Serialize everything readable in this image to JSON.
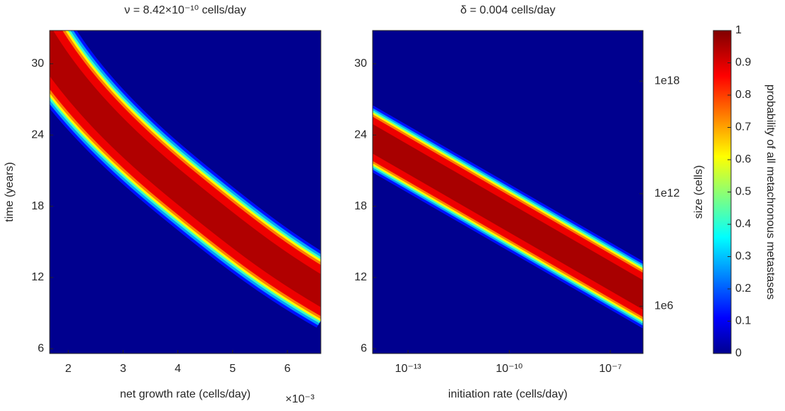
{
  "chart_data": [
    {
      "type": "heatmap",
      "title": "ν = 8.42×10⁻¹⁰ cells/day",
      "xlabel": "net growth rate (cells/day)",
      "x_multiplier": "×10⁻³",
      "ylabel": "time (years)",
      "xlim": [
        1.66,
        6.61
      ],
      "xticks": [
        2,
        3,
        4,
        5,
        6
      ],
      "ylim": [
        5.6,
        32.8
      ],
      "yticks": [
        6,
        12,
        18,
        24,
        30
      ]
    },
    {
      "type": "heatmap",
      "title": "δ = 0.004 cells/day",
      "xlabel": "initiation rate (cells/day)",
      "xlog": true,
      "xlim": [
        8.9e-15,
        9.3e-07
      ],
      "xticks": [
        {
          "value": 1e-13,
          "label": "10⁻¹³"
        },
        {
          "value": 1e-10,
          "label": "10⁻¹⁰"
        },
        {
          "value": 1e-07,
          "label": "10⁻⁷"
        }
      ],
      "ylim": [
        5.6,
        32.8
      ],
      "yticks": [
        6,
        12,
        18,
        24,
        30
      ],
      "y2label": "size (cells)",
      "y2log": true,
      "y2lim": [
        3000.0,
        5e+20
      ],
      "y2ticks": [
        {
          "value": 1000000.0,
          "label": "1e6"
        },
        {
          "value": 1000000000000.0,
          "label": "1e12"
        },
        {
          "value": 1e+18,
          "label": "1e18"
        }
      ],
      "colorbar": {
        "label": "probability of all metachronous metastases",
        "lim": [
          0,
          1
        ],
        "ticks": [
          0,
          0.1,
          0.2,
          0.3,
          0.4,
          0.5,
          0.6,
          0.7,
          0.8,
          0.9,
          1
        ]
      }
    }
  ]
}
